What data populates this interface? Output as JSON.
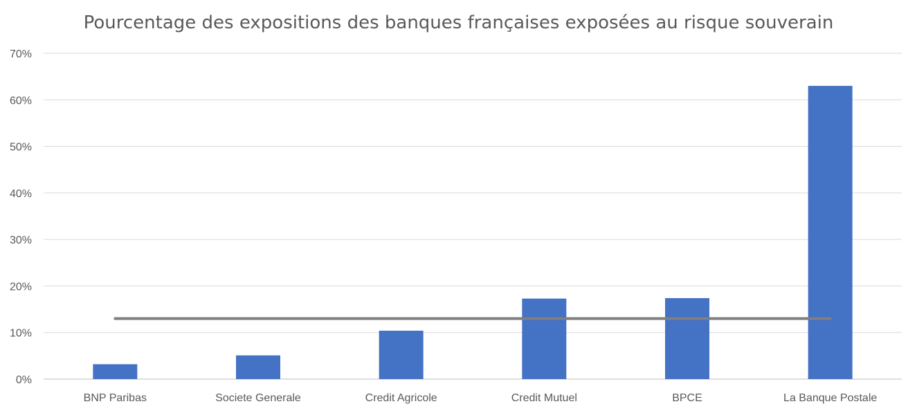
{
  "chart_data": {
    "type": "bar",
    "title": "Pourcentage des expositions des banques françaises exposées au risque souverain",
    "categories": [
      "BNP Paribas",
      "Societe Generale",
      "Credit Agricole",
      "Credit Mutuel",
      "BPCE",
      "La Banque Postale"
    ],
    "series": [
      {
        "type": "bar",
        "values": [
          3.2,
          5.1,
          10.4,
          17.3,
          17.4,
          63.0
        ],
        "color": "#4472C4"
      },
      {
        "type": "line",
        "values": [
          13.0,
          13.0,
          13.0,
          13.0,
          13.0,
          13.0
        ],
        "color": "#7F7F7F"
      }
    ],
    "ylim": [
      0,
      70
    ],
    "yticks": [
      0,
      10,
      20,
      30,
      40,
      50,
      60,
      70
    ],
    "ytick_labels": [
      "0%",
      "10%",
      "20%",
      "30%",
      "40%",
      "50%",
      "60%",
      "70%"
    ],
    "grid": true,
    "legend": "none"
  }
}
